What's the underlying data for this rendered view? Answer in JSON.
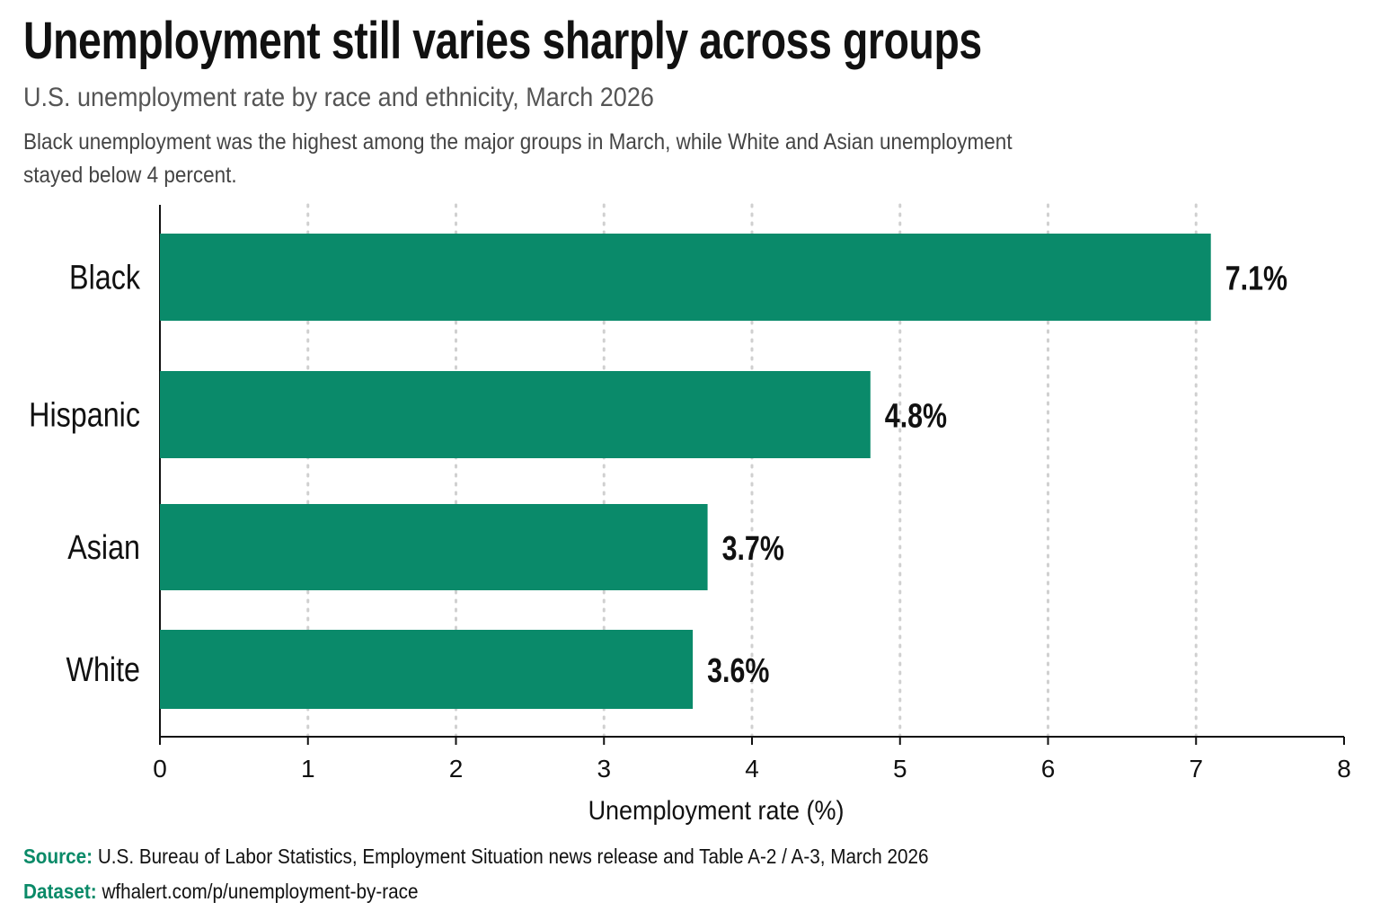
{
  "title": "Unemployment still varies sharply across groups",
  "subtitle": "U.S. unemployment rate by race and ethnicity, March 2026",
  "description": "Black unemployment was the highest among the major groups in March, while White and Asian unemployment stayed below 4 percent.",
  "footer": {
    "source_label": "Source:",
    "source_text": "U.S. Bureau of Labor Statistics, Employment Situation news release and Table A-2 / A-3, March 2026",
    "dataset_label": "Dataset:",
    "dataset_text": "wfhalert.com/p/unemployment-by-race"
  },
  "colors": {
    "bar": "#0a8a6a",
    "accent": "#0a8a68"
  },
  "chart_data": {
    "type": "bar",
    "orientation": "horizontal",
    "categories": [
      "Black",
      "Hispanic",
      "Asian",
      "White"
    ],
    "values": [
      7.1,
      4.8,
      3.7,
      3.6
    ],
    "data_labels": [
      "7.1%",
      "4.8%",
      "3.7%",
      "3.6%"
    ],
    "xlabel": "Unemployment rate (%)",
    "ylabel": "",
    "xlim": [
      0,
      8
    ],
    "xticks": [
      "0",
      "1",
      "2",
      "3",
      "4",
      "5",
      "6",
      "7",
      "8"
    ],
    "grid": "vertical dotted",
    "legend": "none"
  }
}
